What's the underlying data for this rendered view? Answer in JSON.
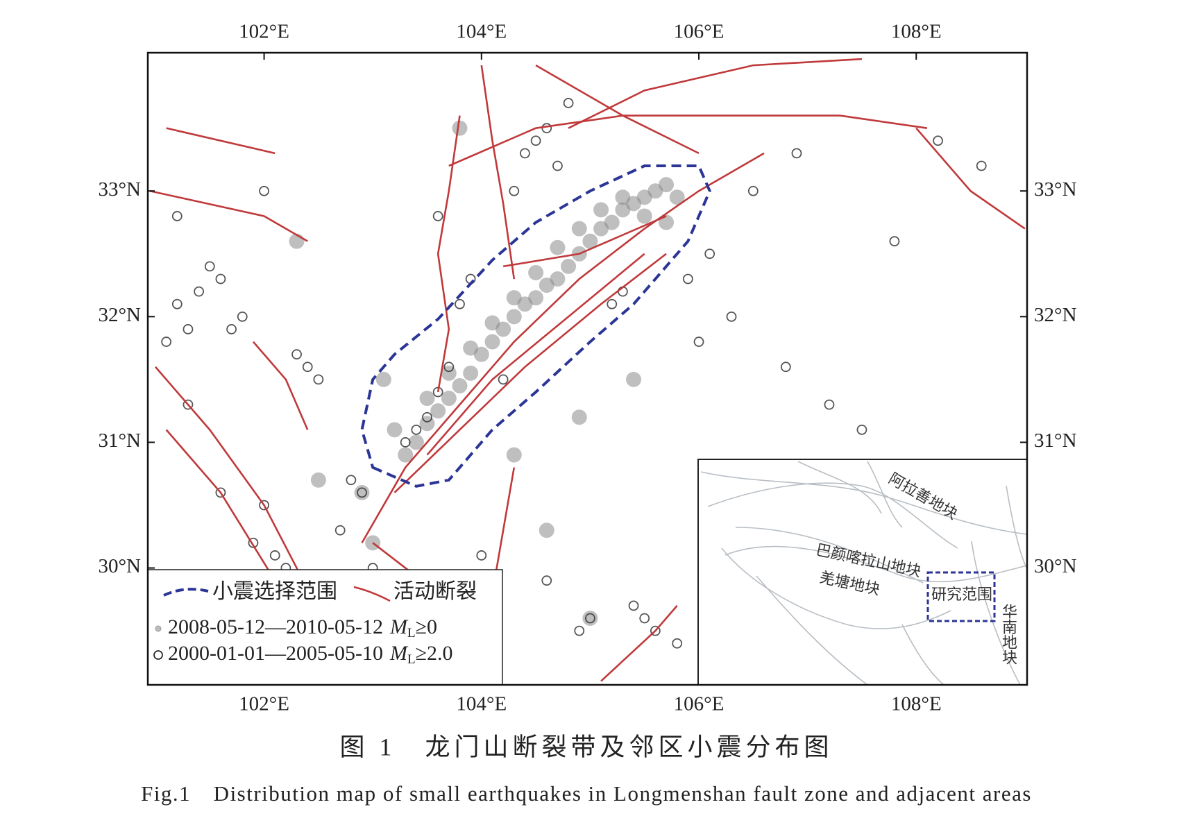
{
  "chart_data": {
    "type": "map",
    "xlim": [
      100.93,
      109.02
    ],
    "ylim": [
      29.07,
      34.1
    ],
    "xticks": [
      {
        "value": 102,
        "label": "102°E"
      },
      {
        "value": 104,
        "label": "104°E"
      },
      {
        "value": 106,
        "label": "106°E"
      },
      {
        "value": 108,
        "label": "108°E"
      }
    ],
    "yticks": [
      {
        "value": 30,
        "label": "30°N"
      },
      {
        "value": 31,
        "label": "31°N"
      },
      {
        "value": 32,
        "label": "32°N"
      },
      {
        "value": 33,
        "label": "33°N"
      }
    ],
    "series": [
      {
        "period": "2008-05-12—2010-05-12",
        "magnitude": "M",
        "magnitude_sub": "L",
        "threshold": "≥0",
        "color": "#8a8a8a",
        "style": "filled",
        "x": [
          103.3,
          103.4,
          103.5,
          103.6,
          103.7,
          103.8,
          103.9,
          104.0,
          104.1,
          104.2,
          104.3,
          104.4,
          104.5,
          104.6,
          104.7,
          104.8,
          104.9,
          105.0,
          105.1,
          105.2,
          105.3,
          105.4,
          105.5,
          105.6,
          105.7,
          105.8,
          103.5,
          103.7,
          103.9,
          104.1,
          104.3,
          104.5,
          104.7,
          104.9,
          105.1,
          105.3,
          105.5,
          105.7,
          103.2,
          103.1,
          102.5,
          102.9,
          104.6,
          105.0,
          104.9,
          103.0,
          102.3,
          104.3,
          105.4,
          103.8
        ],
        "y": [
          30.9,
          31.0,
          31.15,
          31.25,
          31.35,
          31.45,
          31.55,
          31.7,
          31.8,
          31.9,
          32.0,
          32.1,
          32.15,
          32.25,
          32.3,
          32.4,
          32.5,
          32.6,
          32.7,
          32.75,
          32.85,
          32.9,
          32.95,
          33.0,
          33.05,
          32.95,
          31.35,
          31.55,
          31.75,
          31.95,
          32.15,
          32.35,
          32.55,
          32.7,
          32.85,
          32.95,
          32.8,
          32.75,
          31.1,
          31.5,
          30.7,
          30.6,
          30.3,
          29.6,
          31.2,
          30.2,
          32.6,
          30.9,
          31.5,
          33.5
        ]
      },
      {
        "period": "2000-01-01—2005-05-10",
        "magnitude": "M",
        "magnitude_sub": "L",
        "threshold": "≥2.0",
        "color": "#2b2b2b",
        "style": "open",
        "x": [
          101.5,
          101.6,
          101.4,
          101.2,
          101.3,
          101.1,
          101.7,
          101.8,
          102.3,
          102.4,
          102.5,
          101.3,
          101.6,
          102.0,
          102.1,
          102.8,
          102.9,
          102.7,
          103.4,
          103.5,
          103.3,
          103.6,
          103.7,
          103.8,
          103.9,
          103.6,
          104.4,
          104.5,
          104.6,
          104.7,
          104.8,
          104.3,
          105.3,
          105.2,
          105.5,
          105.6,
          105.4,
          104.9,
          105.0,
          106.1,
          106.5,
          106.9,
          107.5,
          108.2,
          108.6,
          107.8,
          106.0,
          106.8,
          107.2,
          104.0,
          103.0,
          102.2,
          101.9,
          102.0,
          101.2,
          104.2,
          104.6,
          105.9,
          106.3,
          105.8
        ],
        "y": [
          32.4,
          32.3,
          32.2,
          32.1,
          31.9,
          31.8,
          31.9,
          32.0,
          31.7,
          31.6,
          31.5,
          31.3,
          30.6,
          30.5,
          30.1,
          30.7,
          30.6,
          30.3,
          31.1,
          31.2,
          31.0,
          31.4,
          31.6,
          32.1,
          32.3,
          32.8,
          33.3,
          33.4,
          33.5,
          33.2,
          33.7,
          33.0,
          32.2,
          32.1,
          29.6,
          29.5,
          29.7,
          29.5,
          29.6,
          32.5,
          33.0,
          33.3,
          31.1,
          33.4,
          33.2,
          32.6,
          31.8,
          31.6,
          31.3,
          30.1,
          30.0,
          30.0,
          30.2,
          33.0,
          32.8,
          31.5,
          29.9,
          32.3,
          32.0,
          29.4
        ]
      }
    ],
    "faults": {
      "name": "活动断裂",
      "color": "#c0393b",
      "lines": [
        {
          "lon": [
            102.9,
            103.3,
            103.8,
            104.3,
            104.9,
            105.5,
            106.0,
            106.6
          ],
          "lat": [
            30.2,
            30.8,
            31.3,
            31.8,
            32.3,
            32.7,
            33.0,
            33.3
          ]
        },
        {
          "lon": [
            103.2,
            103.8,
            104.4,
            105.1,
            105.7
          ],
          "lat": [
            30.6,
            31.1,
            31.6,
            32.1,
            32.5
          ]
        },
        {
          "lon": [
            103.5,
            104.1,
            104.8,
            105.5
          ],
          "lat": [
            30.9,
            31.5,
            32.0,
            32.5
          ]
        },
        {
          "lon": [
            103.6,
            103.7,
            103.6,
            103.7,
            103.8
          ],
          "lat": [
            31.4,
            31.9,
            32.5,
            33.0,
            33.6
          ]
        },
        {
          "lon": [
            104.3,
            104.2,
            104.1,
            104.0
          ],
          "lat": [
            32.3,
            32.9,
            33.4,
            34.0
          ]
        },
        {
          "lon": [
            103.7,
            104.5,
            105.3,
            106.2,
            107.3,
            108.1
          ],
          "lat": [
            33.2,
            33.5,
            33.6,
            33.6,
            33.6,
            33.5
          ]
        },
        {
          "lon": [
            104.5,
            105.3,
            106.0
          ],
          "lat": [
            34.0,
            33.6,
            33.3
          ]
        },
        {
          "lon": [
            104.8,
            105.5,
            106.5,
            107.5
          ],
          "lat": [
            33.5,
            33.8,
            34.0,
            34.05
          ]
        },
        {
          "lon": [
            108.0,
            108.5,
            109.0
          ],
          "lat": [
            33.5,
            33.0,
            32.7
          ]
        },
        {
          "lon": [
            101.1,
            102.1
          ],
          "lat": [
            33.5,
            33.3
          ]
        },
        {
          "lon": [
            100.95,
            102.0,
            102.4
          ],
          "lat": [
            33.0,
            32.8,
            32.6
          ]
        },
        {
          "lon": [
            101.0,
            101.5,
            102.0,
            102.3,
            102.5
          ],
          "lat": [
            31.6,
            31.1,
            30.5,
            30.0,
            29.5
          ]
        },
        {
          "lon": [
            101.1,
            101.6,
            102.1,
            102.3
          ],
          "lat": [
            31.1,
            30.6,
            29.9,
            29.5
          ]
        },
        {
          "lon": [
            101.9,
            102.2,
            102.4
          ],
          "lat": [
            31.8,
            31.5,
            31.1
          ]
        },
        {
          "lon": [
            103.0,
            103.6,
            104.1
          ],
          "lat": [
            30.2,
            29.8,
            29.1
          ]
        },
        {
          "lon": [
            104.3,
            104.2,
            104.1,
            103.9
          ],
          "lat": [
            30.8,
            30.3,
            29.8,
            29.2
          ]
        },
        {
          "lon": [
            105.1,
            105.6,
            105.8
          ],
          "lat": [
            29.1,
            29.5,
            29.7
          ]
        },
        {
          "lon": [
            104.2,
            104.9,
            105.7
          ],
          "lat": [
            32.4,
            32.5,
            32.8
          ]
        }
      ]
    },
    "selection_area": {
      "name": "小震选择范围",
      "color": "#2b3596",
      "lon": [
        103.0,
        103.4,
        103.7,
        104.1,
        104.5,
        105.0,
        105.4,
        105.9,
        106.1,
        106.0,
        105.5,
        105.0,
        104.5,
        104.1,
        103.6,
        103.2,
        103.0,
        102.9
      ],
      "lat": [
        30.8,
        30.65,
        30.7,
        31.1,
        31.4,
        31.8,
        32.1,
        32.6,
        33.0,
        33.2,
        33.2,
        33.0,
        32.75,
        32.45,
        31.98,
        31.7,
        31.5,
        31.1
      ]
    },
    "inset": {
      "blocks": [
        "阿拉善地块",
        "巴颜喀拉山地块",
        "羌塘地块",
        "华南地块"
      ],
      "study_area": "研究范围"
    },
    "caption_cn": "图 1　龙门山断裂带及邻区小震分布图",
    "caption_en": "Fig.1　Distribution map of small earthquakes in Longmenshan fault zone and adjacent areas"
  }
}
